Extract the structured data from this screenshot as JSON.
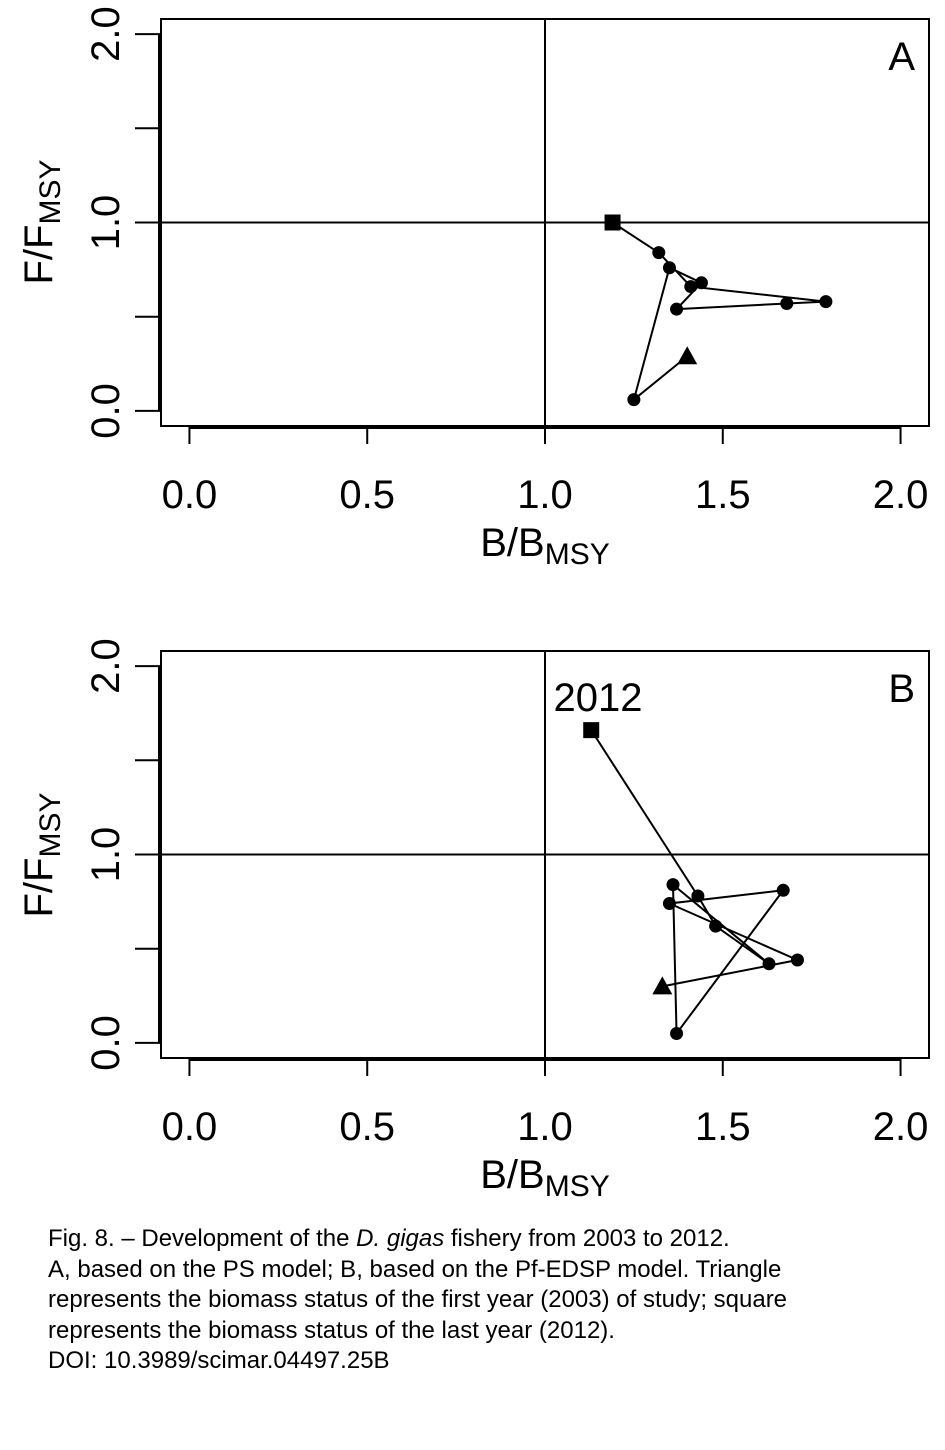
{
  "chart_data": [
    {
      "type": "line",
      "panel_label": "A",
      "xlabel": {
        "main": "B/B",
        "sub": "MSY"
      },
      "ylabel": {
        "main": "F/F",
        "sub": "MSY"
      },
      "xlim": [
        -0.08,
        2.08
      ],
      "ylim": [
        -0.08,
        2.08
      ],
      "x_ticks": [
        "0.0",
        "0.5",
        "1.0",
        "1.5",
        "2.0"
      ],
      "y_ticks": [
        "0.0",
        "1.0",
        "2.0"
      ],
      "reference_lines": {
        "x": 1.0,
        "y": 1.0
      },
      "grid": false,
      "markers": {
        "first": "triangle",
        "middle": "circle",
        "last": "square"
      },
      "x": [
        1.4,
        1.25,
        1.35,
        1.44,
        1.37,
        1.68,
        1.79,
        1.41,
        1.32,
        1.19
      ],
      "y": [
        0.29,
        0.06,
        0.76,
        0.68,
        0.54,
        0.57,
        0.58,
        0.66,
        0.84,
        1.0
      ]
    },
    {
      "type": "line",
      "panel_label": "B",
      "xlabel": {
        "main": "B/B",
        "sub": "MSY"
      },
      "ylabel": {
        "main": "F/F",
        "sub": "MSY"
      },
      "xlim": [
        -0.08,
        2.08
      ],
      "ylim": [
        -0.08,
        2.08
      ],
      "x_ticks": [
        "0.0",
        "0.5",
        "1.0",
        "1.5",
        "2.0"
      ],
      "y_ticks": [
        "0.0",
        "1.0",
        "2.0"
      ],
      "reference_lines": {
        "x": 1.0,
        "y": 1.0
      },
      "grid": false,
      "markers": {
        "first": "triangle",
        "middle": "circle",
        "last": "square"
      },
      "annotation": "2012",
      "x": [
        1.33,
        1.71,
        1.35,
        1.67,
        1.37,
        1.36,
        1.63,
        1.48,
        1.43,
        1.13
      ],
      "y": [
        0.3,
        0.44,
        0.74,
        0.81,
        0.05,
        0.84,
        0.42,
        0.62,
        0.78,
        1.66
      ]
    }
  ],
  "caption": {
    "line1_a": "Fig. 8. – Development of the ",
    "line1_species": "D. gigas",
    "line1_b": " fishery from 2003 to 2012.",
    "line2": "A, based on the PS model; B, based on the Pf-EDSP model. Triangle",
    "line3": "represents the biomass status of the first year (2003) of study; square",
    "line4": "represents the biomass status of the last year (2012).",
    "line5": "DOI: 10.3989/scimar.04497.25B"
  }
}
